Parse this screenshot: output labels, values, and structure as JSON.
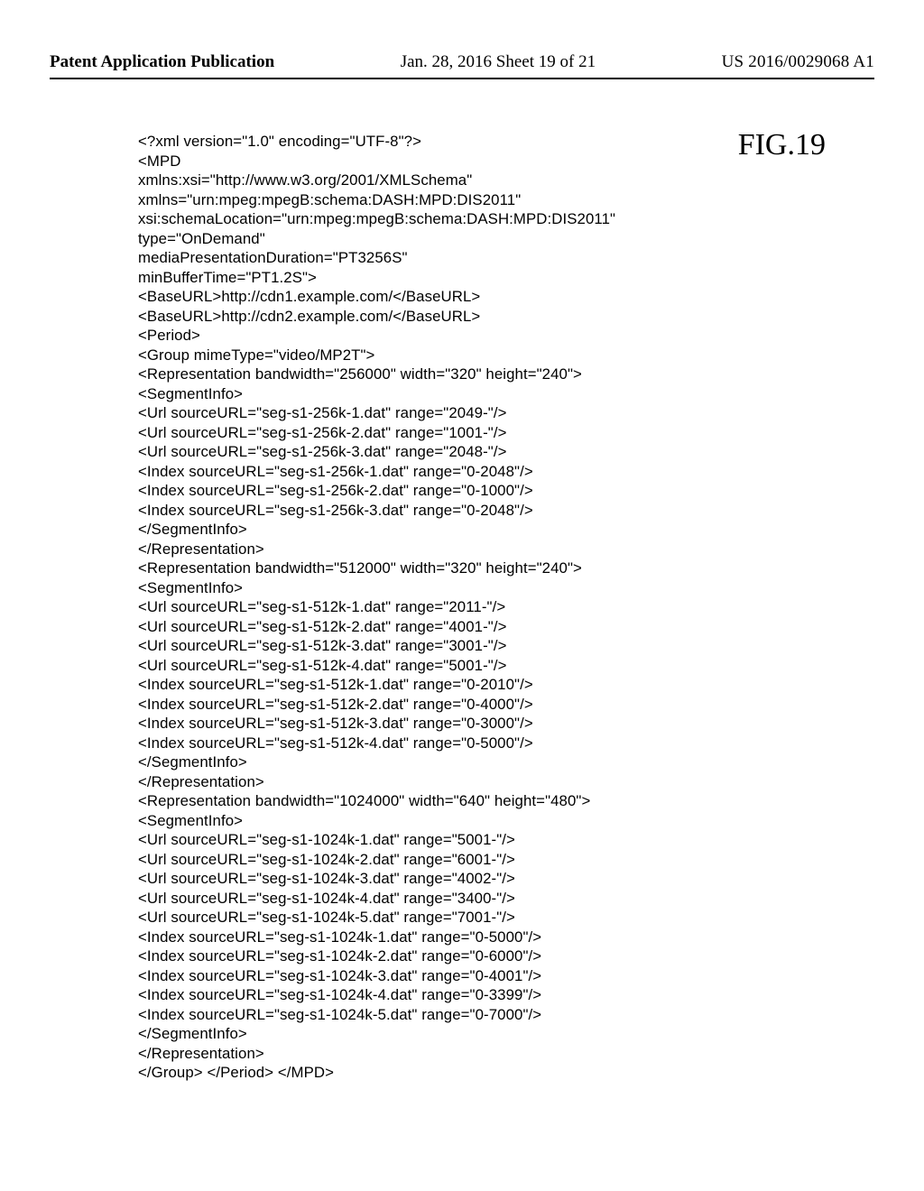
{
  "header": {
    "left": "Patent Application Publication",
    "center": "Jan. 28, 2016  Sheet 19 of 21",
    "right": "US 2016/0029068 A1"
  },
  "figure_label": "FIG.19",
  "code_lines": [
    "<?xml version=\"1.0\" encoding=\"UTF-8\"?>",
    "<MPD",
    "xmlns:xsi=\"http://www.w3.org/2001/XMLSchema\"",
    "xmlns=\"urn:mpeg:mpegB:schema:DASH:MPD:DIS2011\"",
    "xsi:schemaLocation=\"urn:mpeg:mpegB:schema:DASH:MPD:DIS2011\"",
    "type=\"OnDemand\"",
    "mediaPresentationDuration=\"PT3256S\"",
    "minBufferTime=\"PT1.2S\">",
    "<BaseURL>http://cdn1.example.com/</BaseURL>",
    "<BaseURL>http://cdn2.example.com/</BaseURL>",
    "<Period>",
    "<Group mimeType=\"video/MP2T\">",
    "<Representation bandwidth=\"256000\" width=\"320\" height=\"240\">",
    "<SegmentInfo>",
    "<Url sourceURL=\"seg-s1-256k-1.dat\" range=\"2049-\"/>",
    "<Url sourceURL=\"seg-s1-256k-2.dat\" range=\"1001-\"/>",
    "<Url sourceURL=\"seg-s1-256k-3.dat\" range=\"2048-\"/>",
    "<Index sourceURL=\"seg-s1-256k-1.dat\" range=\"0-2048\"/>",
    "<Index sourceURL=\"seg-s1-256k-2.dat\" range=\"0-1000\"/>",
    "<Index sourceURL=\"seg-s1-256k-3.dat\" range=\"0-2048\"/>",
    "</SegmentInfo>",
    "</Representation>",
    "<Representation bandwidth=\"512000\" width=\"320\" height=\"240\">",
    "<SegmentInfo>",
    "<Url sourceURL=\"seg-s1-512k-1.dat\" range=\"2011-\"/>",
    "<Url sourceURL=\"seg-s1-512k-2.dat\" range=\"4001-\"/>",
    "<Url sourceURL=\"seg-s1-512k-3.dat\" range=\"3001-\"/>",
    "<Url sourceURL=\"seg-s1-512k-4.dat\" range=\"5001-\"/>",
    "<Index sourceURL=\"seg-s1-512k-1.dat\" range=\"0-2010\"/>",
    "<Index sourceURL=\"seg-s1-512k-2.dat\" range=\"0-4000\"/>",
    "<Index sourceURL=\"seg-s1-512k-3.dat\" range=\"0-3000\"/>",
    "<Index sourceURL=\"seg-s1-512k-4.dat\" range=\"0-5000\"/>",
    "</SegmentInfo>",
    "</Representation>",
    "<Representation bandwidth=\"1024000\" width=\"640\" height=\"480\">",
    "<SegmentInfo>",
    "<Url sourceURL=\"seg-s1-1024k-1.dat\" range=\"5001-\"/>",
    "<Url sourceURL=\"seg-s1-1024k-2.dat\" range=\"6001-\"/>",
    "<Url sourceURL=\"seg-s1-1024k-3.dat\" range=\"4002-\"/>",
    "<Url sourceURL=\"seg-s1-1024k-4.dat\" range=\"3400-\"/>",
    "<Url sourceURL=\"seg-s1-1024k-5.dat\" range=\"7001-\"/>",
    "<Index sourceURL=\"seg-s1-1024k-1.dat\" range=\"0-5000\"/>",
    "<Index sourceURL=\"seg-s1-1024k-2.dat\" range=\"0-6000\"/>",
    "<Index sourceURL=\"seg-s1-1024k-3.dat\" range=\"0-4001\"/>",
    "<Index sourceURL=\"seg-s1-1024k-4.dat\" range=\"0-3399\"/>",
    "<Index sourceURL=\"seg-s1-1024k-5.dat\" range=\"0-7000\"/>",
    "</SegmentInfo>",
    "</Representation>",
    "</Group> </Period> </MPD>"
  ]
}
